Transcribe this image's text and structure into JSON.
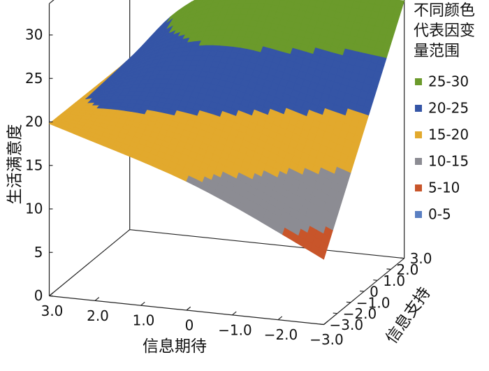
{
  "chart_data": {
    "type": "surface",
    "title": "",
    "zlabel": "生活满意度",
    "xlabel": "信息期待",
    "ylabel": "信息支持",
    "z_ticks": [
      "0",
      "5",
      "10",
      "15",
      "20",
      "25",
      "30"
    ],
    "x_ticks": [
      "3.0",
      "2.0",
      "1.0",
      "0",
      "−1.0",
      "−2.0",
      "−3.0"
    ],
    "y_ticks": [
      "3.0",
      "2.0",
      "1.0",
      "0",
      "−1.0",
      "−2.0",
      "−3.0"
    ],
    "zlim": [
      0,
      30
    ],
    "xlim": [
      3,
      -3
    ],
    "ylim": [
      3,
      -3
    ],
    "surface_edges": {
      "x": [
        3.0,
        2.0,
        1.0,
        0.0,
        -1.0,
        -2.0,
        -3.0
      ],
      "z_at_y_minus3": [
        19.8,
        18.2,
        16.6,
        14.8,
        12.6,
        10.1,
        7.5
      ],
      "z_at_y_plus3": [
        19.6,
        25.5,
        28.8,
        30.2,
        30.1,
        29.7,
        29.6
      ]
    },
    "legend": {
      "title": "不同颜色代表因变量范围",
      "title_lines": [
        "不同颜色",
        "代表因变",
        "量范围"
      ],
      "position": "right",
      "items": [
        {
          "label": "25-30",
          "color": "#6b9a2b"
        },
        {
          "label": "20-25",
          "color": "#3555a6"
        },
        {
          "label": "15-20",
          "color": "#e2a92d"
        },
        {
          "label": "10-15",
          "color": "#8c8c93"
        },
        {
          "label": "5-10",
          "color": "#c8552a"
        },
        {
          "label": "0-5",
          "color": "#5a7fc2"
        }
      ]
    }
  }
}
